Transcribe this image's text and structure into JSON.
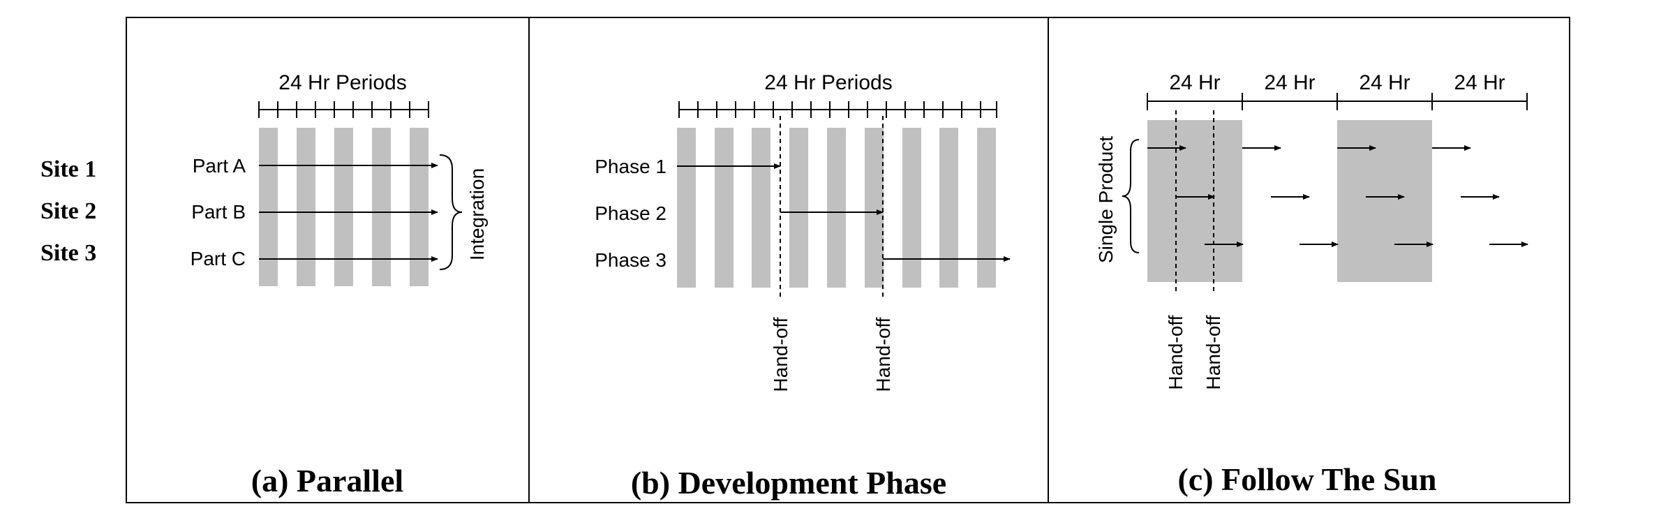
{
  "site_labels": [
    "Site 1",
    "Site 2",
    "Site 3"
  ],
  "panel_a": {
    "caption": "(a) Parallel",
    "period_label": "24 Hr Periods",
    "rows": [
      "Part A",
      "Part B",
      "Part C"
    ],
    "brace_label": "Integration"
  },
  "panel_b": {
    "caption": "(b) Development Phase",
    "period_label": "24 Hr Periods",
    "rows": [
      "Phase 1",
      "Phase 2",
      "Phase 3"
    ],
    "handoffs": [
      "Hand-off",
      "Hand-off"
    ]
  },
  "panel_c": {
    "caption": "(c) Follow The Sun",
    "period_labels": [
      "24 Hr",
      "24 Hr",
      "24 Hr",
      "24 Hr"
    ],
    "brace_label": "Single Product",
    "handoffs": [
      "Hand-off",
      "Hand-off"
    ]
  },
  "colors": {
    "stripe": "#c0c0c0",
    "line": "#000000",
    "background": "#ffffff"
  }
}
